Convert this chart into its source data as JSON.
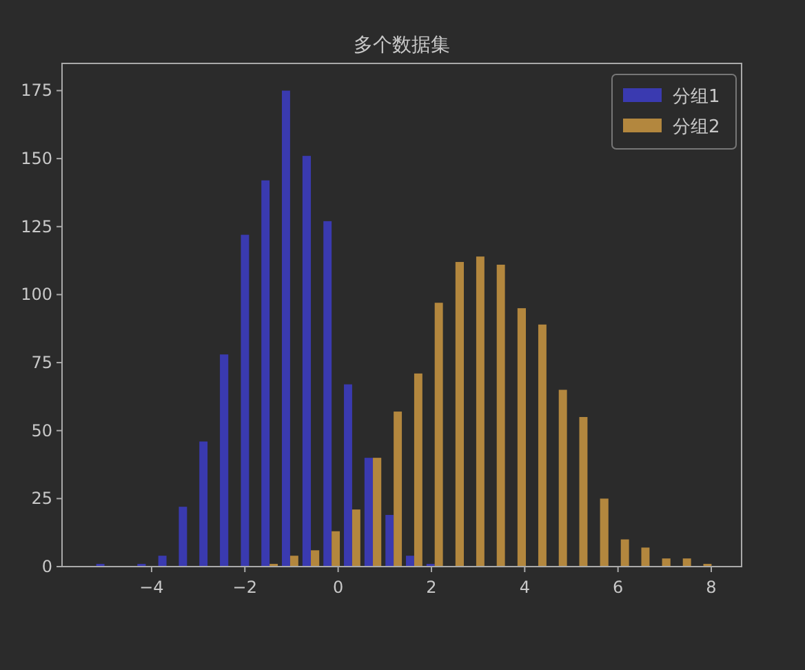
{
  "chart_data": {
    "type": "histogram",
    "title": "多个数据集",
    "bins": [
      -5.23,
      -4.79,
      -4.35,
      -3.9,
      -3.46,
      -3.02,
      -2.58,
      -2.13,
      -1.69,
      -1.25,
      -0.81,
      -0.36,
      0.08,
      0.52,
      0.97,
      1.41,
      1.85,
      2.29,
      2.74,
      3.18,
      3.62,
      4.07,
      4.51,
      4.95,
      5.39,
      5.84,
      6.28,
      6.72,
      7.17,
      7.61,
      8.05
    ],
    "series": [
      {
        "name": "分组1",
        "color": "#3a3ab0",
        "values": [
          1,
          0,
          1,
          4,
          22,
          46,
          78,
          122,
          142,
          175,
          151,
          127,
          67,
          40,
          19,
          4,
          1,
          0,
          0,
          0,
          0,
          0,
          0,
          0,
          0,
          0,
          0,
          0,
          0,
          0
        ]
      },
      {
        "name": "分组2",
        "color": "#b3873e",
        "values": [
          0,
          0,
          0,
          0,
          0,
          0,
          0,
          0,
          1,
          4,
          6,
          13,
          21,
          40,
          57,
          71,
          97,
          112,
          114,
          111,
          95,
          89,
          65,
          55,
          25,
          10,
          7,
          3,
          3,
          1
        ]
      }
    ],
    "xlim": [
      -5.92,
      8.65
    ],
    "ylim": [
      0,
      185
    ],
    "xticks": [
      {
        "value": -4,
        "label": "−4"
      },
      {
        "value": -2,
        "label": "−2"
      },
      0,
      2,
      4,
      6,
      8
    ],
    "yticks": [
      0,
      25,
      50,
      75,
      100,
      125,
      150,
      175
    ],
    "grid": false,
    "legend": "top right"
  }
}
